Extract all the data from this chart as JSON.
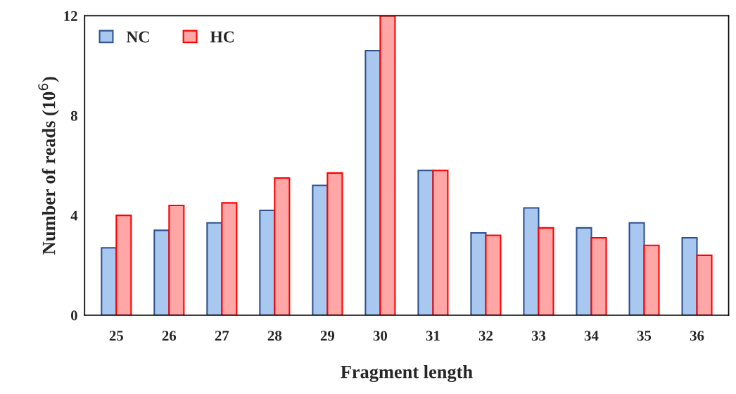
{
  "chart_data": {
    "type": "bar",
    "xlabel": "Fragment length",
    "ylabel": "Number of reads (10$^{6}$)",
    "categories": [
      "25",
      "26",
      "27",
      "28",
      "29",
      "30",
      "31",
      "32",
      "33",
      "34",
      "35",
      "36"
    ],
    "series": [
      {
        "name": "NC",
        "color": "#a9c8f0",
        "values": [
          2.7,
          3.4,
          3.7,
          4.2,
          5.2,
          10.6,
          5.8,
          3.3,
          4.3,
          3.5,
          3.7,
          3.1
        ]
      },
      {
        "name": "HC",
        "color": "#ffa6a6",
        "values": [
          4.0,
          4.4,
          4.5,
          5.5,
          5.7,
          12.0,
          5.8,
          3.2,
          3.5,
          3.1,
          2.8,
          2.4
        ]
      }
    ],
    "ylim": [
      0,
      12
    ],
    "yticks": [
      0,
      4,
      8,
      12
    ],
    "grid": false,
    "legend": "top left"
  }
}
